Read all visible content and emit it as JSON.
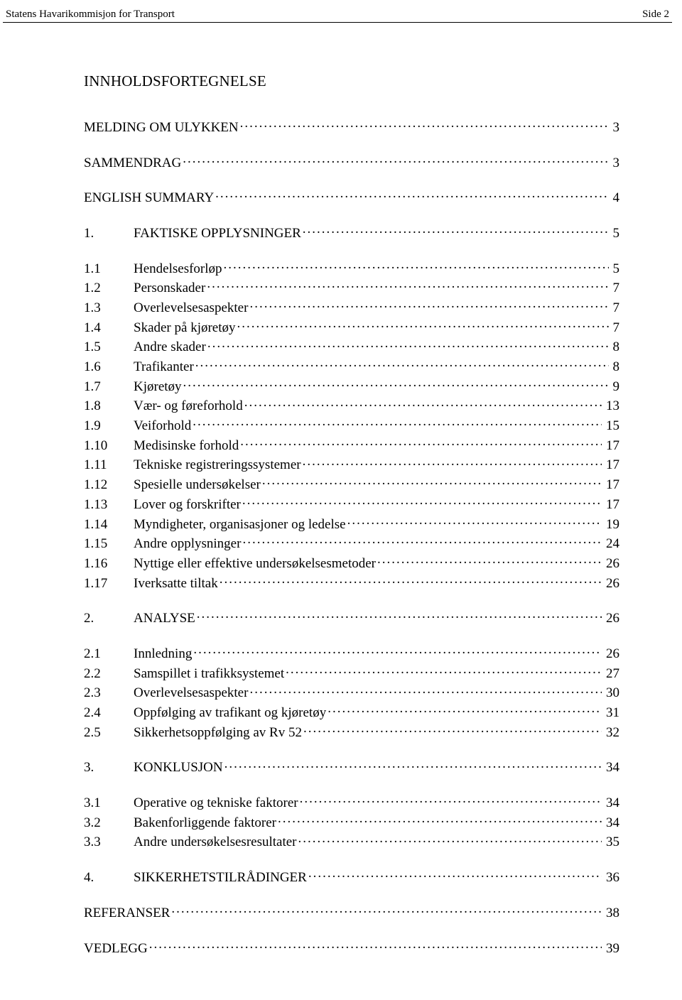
{
  "header": {
    "left": "Statens Havarikommisjon for Transport",
    "right": "Side 2"
  },
  "title": "INNHOLDSFORTEGNELSE",
  "toc": [
    {
      "entries": [
        {
          "num": "",
          "label": "MELDING OM ULYKKEN",
          "page": "3"
        }
      ]
    },
    {
      "entries": [
        {
          "num": "",
          "label": "SAMMENDRAG",
          "page": "3"
        }
      ]
    },
    {
      "entries": [
        {
          "num": "",
          "label": "ENGLISH SUMMARY",
          "page": "4"
        }
      ]
    },
    {
      "entries": [
        {
          "num": "1.",
          "label": "FAKTISKE OPPLYSNINGER",
          "page": "5"
        }
      ]
    },
    {
      "entries": [
        {
          "num": "1.1",
          "label": "Hendelsesforløp",
          "page": "5"
        },
        {
          "num": "1.2",
          "label": "Personskader",
          "page": "7"
        },
        {
          "num": "1.3",
          "label": "Overlevelsesaspekter",
          "page": "7"
        },
        {
          "num": "1.4",
          "label": "Skader på kjøretøy",
          "page": "7"
        },
        {
          "num": "1.5",
          "label": "Andre skader",
          "page": "8"
        },
        {
          "num": "1.6",
          "label": "Trafikanter",
          "page": "8"
        },
        {
          "num": "1.7",
          "label": "Kjøretøy",
          "page": "9"
        },
        {
          "num": "1.8",
          "label": "Vær- og føreforhold",
          "page": "13"
        },
        {
          "num": "1.9",
          "label": "Veiforhold",
          "page": "15"
        },
        {
          "num": "1.10",
          "label": "Medisinske forhold",
          "page": "17"
        },
        {
          "num": "1.11",
          "label": "Tekniske registreringssystemer",
          "page": "17"
        },
        {
          "num": "1.12",
          "label": "Spesielle undersøkelser",
          "page": "17"
        },
        {
          "num": "1.13",
          "label": "Lover og forskrifter",
          "page": "17"
        },
        {
          "num": "1.14",
          "label": "Myndigheter, organisasjoner og ledelse",
          "page": "19"
        },
        {
          "num": "1.15",
          "label": "Andre opplysninger",
          "page": "24"
        },
        {
          "num": "1.16",
          "label": "Nyttige eller effektive undersøkelsesmetoder",
          "page": "26"
        },
        {
          "num": "1.17",
          "label": "Iverksatte tiltak",
          "page": "26"
        }
      ]
    },
    {
      "entries": [
        {
          "num": "2.",
          "label": "ANALYSE",
          "page": "26"
        }
      ]
    },
    {
      "entries": [
        {
          "num": "2.1",
          "label": "Innledning",
          "page": "26"
        },
        {
          "num": "2.2",
          "label": "Samspillet i trafikksystemet",
          "page": "27"
        },
        {
          "num": "2.3",
          "label": "Overlevelsesaspekter",
          "page": "30"
        },
        {
          "num": "2.4",
          "label": "Oppfølging av trafikant og kjøretøy",
          "page": "31"
        },
        {
          "num": "2.5",
          "label": "Sikkerhetsoppfølging av Rv 52",
          "page": "32"
        }
      ]
    },
    {
      "entries": [
        {
          "num": "3.",
          "label": "KONKLUSJON",
          "page": "34"
        }
      ]
    },
    {
      "entries": [
        {
          "num": "3.1",
          "label": "Operative og tekniske faktorer",
          "page": "34"
        },
        {
          "num": "3.2",
          "label": "Bakenforliggende faktorer",
          "page": "34"
        },
        {
          "num": "3.3",
          "label": "Andre undersøkelsesresultater",
          "page": "35"
        }
      ]
    },
    {
      "entries": [
        {
          "num": "4.",
          "label": "SIKKERHETSTILRÅDINGER",
          "page": "36"
        }
      ]
    },
    {
      "entries": [
        {
          "num": "",
          "label": "REFERANSER",
          "page": "38"
        }
      ]
    },
    {
      "entries": [
        {
          "num": "",
          "label": "VEDLEGG",
          "page": "39"
        }
      ]
    }
  ]
}
